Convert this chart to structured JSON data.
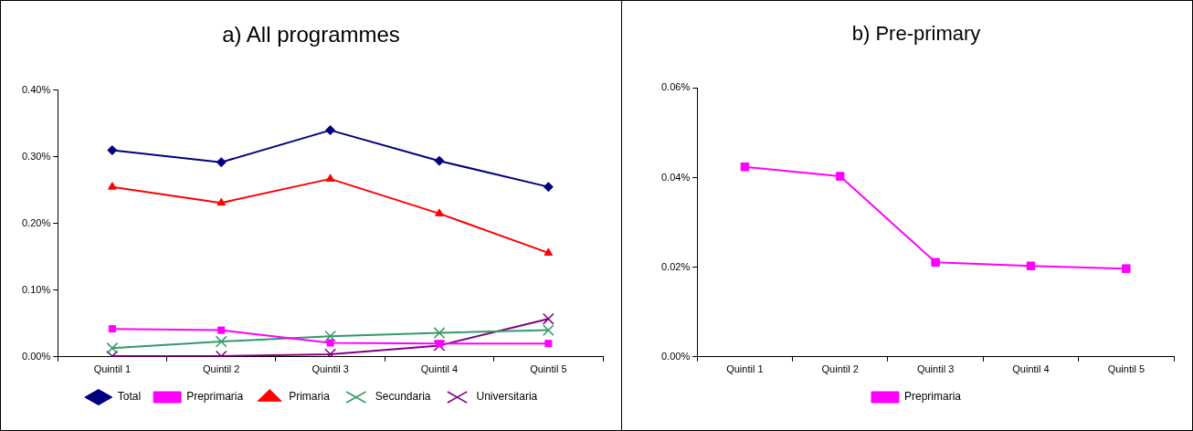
{
  "chart_data": [
    {
      "type": "line",
      "title": "a) All programmes",
      "categories": [
        "Quintil 1",
        "Quintil 2",
        "Quintil 3",
        "Quintil 4",
        "Quintil 5"
      ],
      "series": [
        {
          "name": "Total",
          "color": "#000080",
          "marker": "diamond",
          "values": [
            0.31,
            0.292,
            0.34,
            0.294,
            0.255
          ]
        },
        {
          "name": "Preprimaria",
          "color": "#ff00ff",
          "marker": "square",
          "values": [
            0.042,
            0.04,
            0.021,
            0.02,
            0.02
          ]
        },
        {
          "name": "Primaria",
          "color": "#ff0000",
          "marker": "triangle",
          "values": [
            0.255,
            0.231,
            0.267,
            0.215,
            0.156
          ]
        },
        {
          "name": "Secundaria",
          "color": "#339966",
          "marker": "cross",
          "values": [
            0.013,
            0.023,
            0.031,
            0.036,
            0.04
          ]
        },
        {
          "name": "Universitaria",
          "color": "#800080",
          "marker": "cross",
          "values": [
            0.001,
            0.001,
            0.004,
            0.017,
            0.057
          ]
        }
      ],
      "ylim": [
        0,
        0.4
      ],
      "yticks": [
        {
          "value": 0,
          "label": "0.00%"
        },
        {
          "value": 0.1,
          "label": "0.10%"
        },
        {
          "value": 0.2,
          "label": "0.20%"
        },
        {
          "value": 0.3,
          "label": "0.30%"
        },
        {
          "value": 0.4,
          "label": "0.40%"
        }
      ],
      "grid": false,
      "legend": "bottom"
    },
    {
      "type": "line",
      "title": "b) Pre-primary",
      "categories": [
        "Quintil 1",
        "Quintil 2",
        "Quintil 3",
        "Quintil 4",
        "Quintil 5"
      ],
      "series": [
        {
          "name": "Preprimaria",
          "color": "#ff00ff",
          "marker": "square",
          "values": [
            0.0424,
            0.0403,
            0.0211,
            0.0203,
            0.0197
          ]
        }
      ],
      "ylim": [
        0,
        0.06
      ],
      "yticks": [
        {
          "value": 0,
          "label": "0.00%"
        },
        {
          "value": 0.02,
          "label": "0.02%"
        },
        {
          "value": 0.04,
          "label": "0.04%"
        },
        {
          "value": 0.06,
          "label": "0.06%"
        }
      ],
      "grid": false,
      "legend": "bottom"
    }
  ]
}
